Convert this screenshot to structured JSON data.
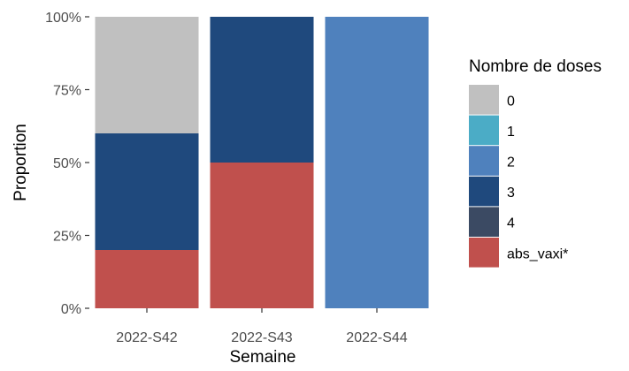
{
  "chart_data": {
    "type": "bar",
    "stacked": true,
    "xlabel": "Semaine",
    "ylabel": "Proportion",
    "ylim": [
      0,
      1
    ],
    "grid": false,
    "legend_position": "right",
    "categories": [
      "2022-S42",
      "2022-S43",
      "2022-S44"
    ],
    "y_ticks": [
      {
        "value": 0,
        "label": "0%"
      },
      {
        "value": 0.25,
        "label": "25%"
      },
      {
        "value": 0.5,
        "label": "50%"
      },
      {
        "value": 0.75,
        "label": "75%"
      },
      {
        "value": 1,
        "label": "100%"
      }
    ],
    "legend_title": "Nombre de doses",
    "series": [
      {
        "name": "0",
        "color": "#c0c0c0",
        "values": [
          0.4,
          0,
          0
        ]
      },
      {
        "name": "1",
        "color": "#4bacc6",
        "values": [
          0,
          0,
          0
        ]
      },
      {
        "name": "2",
        "color": "#4f81bd",
        "values": [
          0,
          0,
          1
        ]
      },
      {
        "name": "3",
        "color": "#1f497d",
        "values": [
          0.4,
          0.5,
          0
        ]
      },
      {
        "name": "4",
        "color": "#3b4a63",
        "values": [
          0,
          0,
          0
        ]
      },
      {
        "name": "abs_vaxi*",
        "color": "#c0504d",
        "values": [
          0.2,
          0.5,
          0
        ]
      }
    ]
  }
}
